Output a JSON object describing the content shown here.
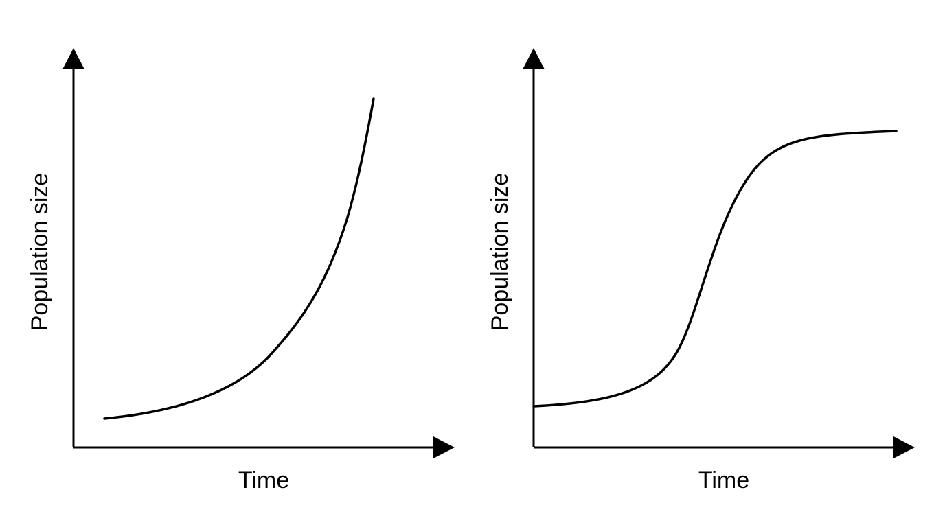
{
  "panels": [
    {
      "x_label": "Time",
      "y_label": "Population size"
    },
    {
      "x_label": "Time",
      "y_label": "Population size"
    }
  ]
}
